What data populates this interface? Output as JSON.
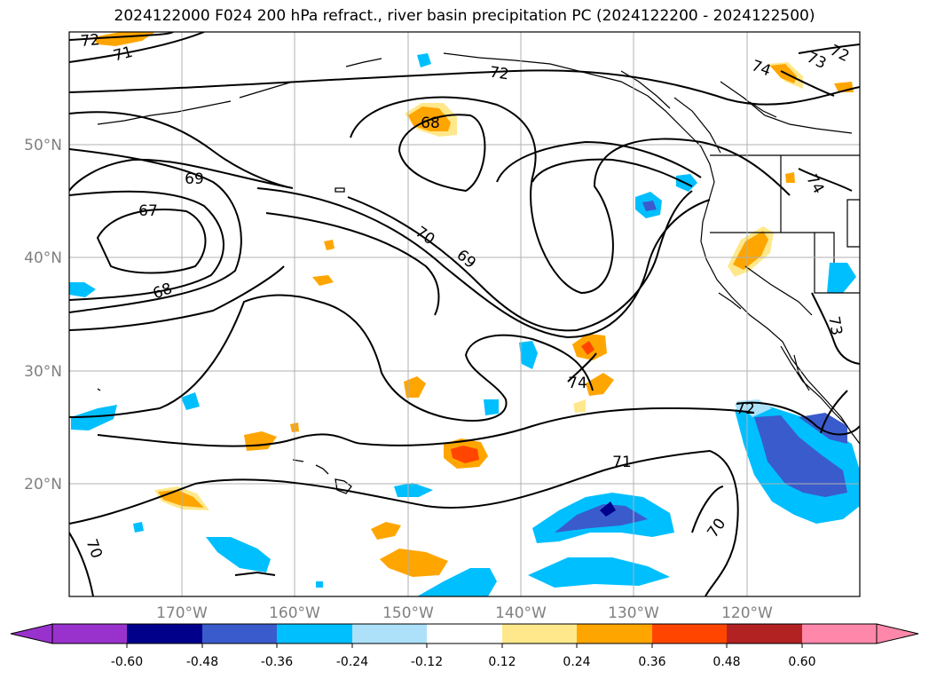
{
  "title": "2024122000 F024 200 hPa refract., river basin precipitation PC (2024122200 - 2024122500)",
  "lat_labels": [
    "50°N",
    "40°N",
    "30°N",
    "20°N"
  ],
  "lon_labels": [
    "170°W",
    "160°W",
    "150°W",
    "140°W",
    "130°W",
    "120°W"
  ],
  "contour_labels": [
    "72",
    "71",
    "72",
    "74",
    "73",
    "72",
    "68",
    "69",
    "67",
    "68",
    "70",
    "69",
    "74",
    "74",
    "72",
    "73",
    "71",
    "70",
    "70"
  ],
  "colorbar": {
    "ticks": [
      "-0.60",
      "-0.48",
      "-0.36",
      "-0.24",
      "-0.12",
      "0.12",
      "0.24",
      "0.36",
      "0.48",
      "0.60"
    ],
    "colors": [
      "#9932CC",
      "#00008B",
      "#3A5BCC",
      "#00BFFF",
      "#ADE1FA",
      "#FFFFFF",
      "#FFE88C",
      "#FFA500",
      "#FF4500",
      "#B22222",
      "#FF88AA"
    ]
  }
}
